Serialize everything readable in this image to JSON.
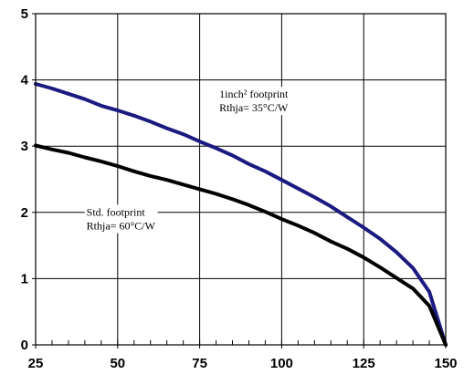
{
  "chart_data": {
    "type": "line",
    "title": "",
    "xlabel": "",
    "ylabel": "",
    "xlim": [
      25,
      150
    ],
    "ylim": [
      0,
      5
    ],
    "grid": true,
    "x_ticks": [
      "25",
      "50",
      "75",
      "100",
      "125",
      "150"
    ],
    "y_ticks": [
      "0",
      "1",
      "2",
      "3",
      "4",
      "5"
    ],
    "series": [
      {
        "color": "#1a1a80",
        "points": [
          [
            25,
            3.94
          ],
          [
            30,
            3.87
          ],
          [
            35,
            3.79
          ],
          [
            40,
            3.71
          ],
          [
            45,
            3.61
          ],
          [
            50,
            3.54
          ],
          [
            55,
            3.46
          ],
          [
            60,
            3.37
          ],
          [
            65,
            3.27
          ],
          [
            70,
            3.18
          ],
          [
            75,
            3.07
          ],
          [
            80,
            2.97
          ],
          [
            85,
            2.86
          ],
          [
            90,
            2.73
          ],
          [
            95,
            2.62
          ],
          [
            100,
            2.49
          ],
          [
            105,
            2.36
          ],
          [
            110,
            2.23
          ],
          [
            115,
            2.09
          ],
          [
            120,
            1.93
          ],
          [
            125,
            1.77
          ],
          [
            130,
            1.6
          ],
          [
            135,
            1.4
          ],
          [
            140,
            1.16
          ],
          [
            145,
            0.8
          ],
          [
            150,
            0.0
          ]
        ]
      },
      {
        "color": "#000000",
        "points": [
          [
            25,
            3.01
          ],
          [
            30,
            2.95
          ],
          [
            35,
            2.9
          ],
          [
            40,
            2.83
          ],
          [
            45,
            2.77
          ],
          [
            50,
            2.7
          ],
          [
            55,
            2.62
          ],
          [
            60,
            2.55
          ],
          [
            65,
            2.49
          ],
          [
            70,
            2.42
          ],
          [
            75,
            2.35
          ],
          [
            80,
            2.28
          ],
          [
            85,
            2.2
          ],
          [
            90,
            2.11
          ],
          [
            95,
            2.01
          ],
          [
            100,
            1.9
          ],
          [
            105,
            1.8
          ],
          [
            110,
            1.69
          ],
          [
            115,
            1.56
          ],
          [
            120,
            1.45
          ],
          [
            125,
            1.32
          ],
          [
            130,
            1.17
          ],
          [
            135,
            1.01
          ],
          [
            140,
            0.85
          ],
          [
            145,
            0.59
          ],
          [
            150,
            0.0
          ]
        ]
      }
    ],
    "annotations": [
      {
        "lines": [
          "1inch² footprint",
          "Rthja= 35°C/W"
        ],
        "x": 81,
        "y": 3.73
      },
      {
        "lines": [
          "Std. footprint",
          "Rthja= 60°C/W"
        ],
        "x": 40.5,
        "y": 1.95
      }
    ]
  }
}
